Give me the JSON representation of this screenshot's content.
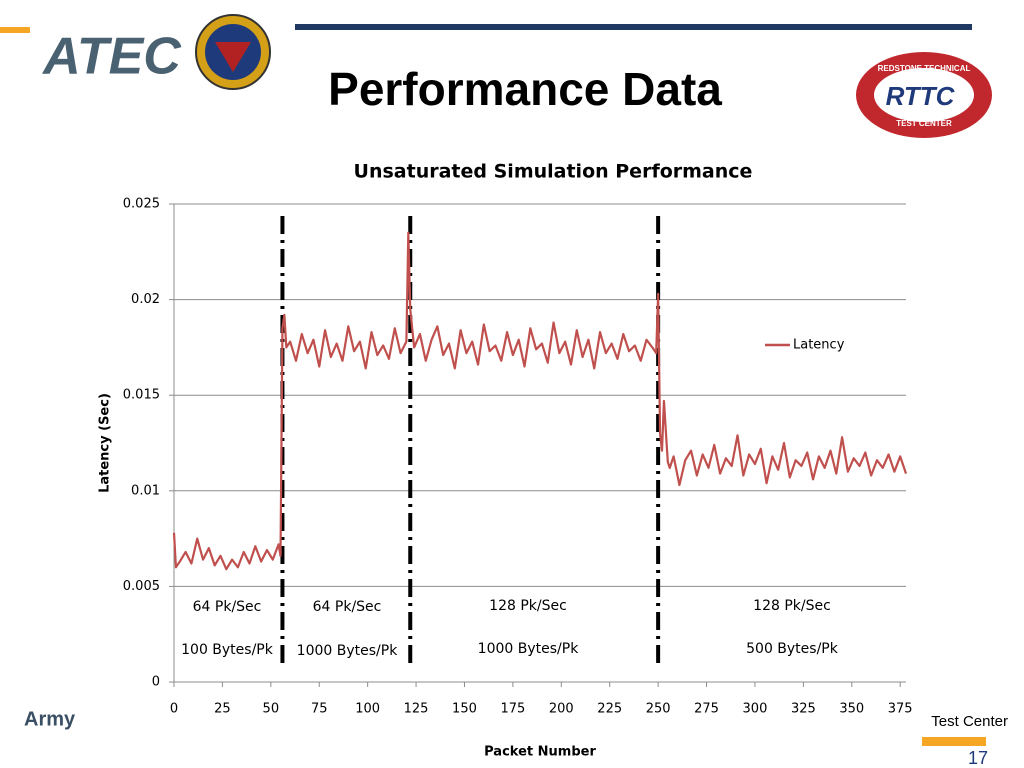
{
  "slide": {
    "title": "Performance Data",
    "logo_left": "ATEC",
    "logo_right": "RTTC",
    "logo_right_top": "REDSTONE TECHNICAL",
    "logo_right_bottom": "TEST CENTER",
    "footer_left": "Army",
    "footer_right": "Test Center",
    "page_number": "17"
  },
  "chart_data": {
    "type": "line",
    "title": "Unsaturated Simulation Performance",
    "x_label": "Packet Number",
    "y_label": "Latency (Sec)",
    "xlim": [
      0,
      378
    ],
    "ylim": [
      0,
      0.025
    ],
    "xticks": [
      0,
      25,
      50,
      75,
      100,
      125,
      150,
      175,
      200,
      225,
      250,
      275,
      300,
      325,
      350,
      375
    ],
    "yticks": [
      0,
      0.005,
      0.01,
      0.015,
      0.02,
      0.025
    ],
    "grid": true,
    "legend": "right",
    "dividers": [
      56,
      122,
      250
    ],
    "annotations": [
      {
        "rate": "64 Pk/Sec",
        "size": "100 Bytes/Pk"
      },
      {
        "rate": "64 Pk/Sec",
        "size": "1000 Bytes/Pk"
      },
      {
        "rate": "128 Pk/Sec",
        "size": "1000 Bytes/Pk"
      },
      {
        "rate": "128 Pk/Sec",
        "size": "500 Bytes/Pk"
      }
    ],
    "x": [
      0,
      1,
      3,
      6,
      9,
      12,
      15,
      18,
      21,
      24,
      27,
      30,
      33,
      36,
      39,
      42,
      45,
      48,
      51,
      54,
      55,
      56,
      57,
      58,
      60,
      63,
      66,
      69,
      72,
      75,
      78,
      81,
      84,
      87,
      90,
      93,
      96,
      99,
      102,
      105,
      108,
      111,
      114,
      117,
      120,
      121,
      122,
      124,
      127,
      130,
      133,
      136,
      139,
      142,
      145,
      148,
      151,
      154,
      157,
      160,
      163,
      166,
      169,
      172,
      175,
      178,
      181,
      184,
      187,
      190,
      193,
      196,
      199,
      202,
      205,
      208,
      211,
      214,
      217,
      220,
      223,
      226,
      229,
      232,
      235,
      238,
      241,
      244,
      247,
      249,
      250,
      251,
      252,
      253,
      255,
      256,
      258,
      261,
      264,
      267,
      270,
      273,
      276,
      279,
      282,
      285,
      288,
      291,
      294,
      297,
      300,
      303,
      306,
      309,
      312,
      315,
      318,
      321,
      324,
      327,
      330,
      333,
      336,
      339,
      342,
      345,
      348,
      351,
      354,
      357,
      360,
      363,
      366,
      369,
      372,
      375,
      378
    ],
    "series": [
      {
        "name": "Latency",
        "color": "#c0504d",
        "values": [
          0.0078,
          0.006,
          0.0063,
          0.0068,
          0.0062,
          0.0075,
          0.0064,
          0.007,
          0.0061,
          0.0066,
          0.0059,
          0.0064,
          0.006,
          0.0068,
          0.0062,
          0.0071,
          0.0063,
          0.0069,
          0.0064,
          0.0072,
          0.0066,
          0.0185,
          0.0192,
          0.0175,
          0.0178,
          0.0168,
          0.0182,
          0.0172,
          0.0179,
          0.0165,
          0.0184,
          0.017,
          0.0177,
          0.0168,
          0.0186,
          0.0173,
          0.0178,
          0.0164,
          0.0183,
          0.0171,
          0.0176,
          0.0169,
          0.0185,
          0.0172,
          0.0178,
          0.0235,
          0.0195,
          0.0175,
          0.0182,
          0.0168,
          0.0179,
          0.0186,
          0.0171,
          0.0177,
          0.0164,
          0.0184,
          0.0172,
          0.0178,
          0.0166,
          0.0187,
          0.0173,
          0.0176,
          0.0168,
          0.0183,
          0.0171,
          0.0179,
          0.0165,
          0.0185,
          0.0174,
          0.0177,
          0.0167,
          0.0188,
          0.0172,
          0.0178,
          0.0166,
          0.0184,
          0.017,
          0.0179,
          0.0164,
          0.0183,
          0.0172,
          0.0177,
          0.0169,
          0.0182,
          0.0173,
          0.0176,
          0.0168,
          0.0179,
          0.0175,
          0.0172,
          0.0203,
          0.013,
          0.0121,
          0.0147,
          0.0115,
          0.0112,
          0.0118,
          0.0103,
          0.0116,
          0.0121,
          0.0108,
          0.0119,
          0.0112,
          0.0124,
          0.0109,
          0.0117,
          0.0113,
          0.0129,
          0.0108,
          0.0119,
          0.0114,
          0.0122,
          0.0104,
          0.0118,
          0.0111,
          0.0125,
          0.0107,
          0.0116,
          0.0113,
          0.012,
          0.0106,
          0.0118,
          0.0112,
          0.0121,
          0.0109,
          0.0128,
          0.011,
          0.0117,
          0.0113,
          0.012,
          0.0108,
          0.0116,
          0.0112,
          0.0119,
          0.011,
          0.0118,
          0.0109
        ]
      }
    ]
  }
}
